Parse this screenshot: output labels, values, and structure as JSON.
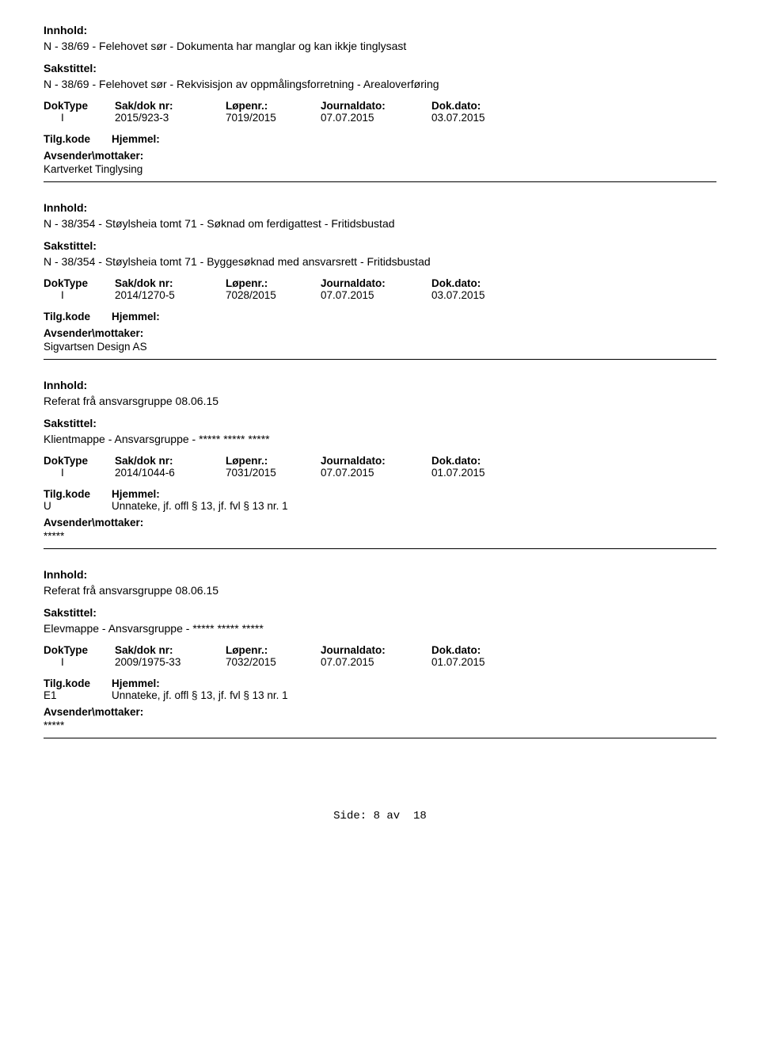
{
  "labels": {
    "innhold": "Innhold:",
    "sakstittel": "Sakstittel:",
    "doktype": "DokType",
    "sakdok": "Sak/dok nr:",
    "lopenr": "Løpenr.:",
    "journaldato": "Journaldato:",
    "dokdato": "Dok.dato:",
    "tilgkode": "Tilg.kode",
    "hjemmel": "Hjemmel:",
    "avsender": "Avsender\\mottaker:"
  },
  "records": [
    {
      "innhold": "N - 38/69 - Felehovet sør - Dokumenta har manglar og kan ikkje tinglysast",
      "sakstittel": "N - 38/69 - Felehovet sør - Rekvisisjon av oppmålingsforretning - Arealoverføring",
      "doktype": "I",
      "sakdok": "2015/923-3",
      "lopenr": "7019/2015",
      "journaldato": "07.07.2015",
      "dokdato": "03.07.2015",
      "tilgcode": "",
      "hjemmel": "",
      "avsender": "Kartverket Tinglysing"
    },
    {
      "innhold": "N - 38/354 - Støylsheia tomt 71 - Søknad om ferdigattest - Fritidsbustad",
      "sakstittel": "N - 38/354 - Støylsheia tomt 71 - Byggesøknad med ansvarsrett - Fritidsbustad",
      "doktype": "I",
      "sakdok": "2014/1270-5",
      "lopenr": "7028/2015",
      "journaldato": "07.07.2015",
      "dokdato": "03.07.2015",
      "tilgcode": "",
      "hjemmel": "",
      "avsender": "Sigvartsen Design AS"
    },
    {
      "innhold": "Referat frå ansvarsgruppe 08.06.15",
      "sakstittel": "Klientmappe - Ansvarsgruppe - ***** ***** *****",
      "doktype": "I",
      "sakdok": "2014/1044-6",
      "lopenr": "7031/2015",
      "journaldato": "07.07.2015",
      "dokdato": "01.07.2015",
      "tilgcode": "U",
      "hjemmel": "Unnateke, jf. offl § 13, jf. fvl § 13 nr. 1",
      "avsender": "*****"
    },
    {
      "innhold": "Referat frå ansvarsgruppe 08.06.15",
      "sakstittel": "Elevmappe - Ansvarsgruppe - ***** ***** *****",
      "doktype": "I",
      "sakdok": "2009/1975-33",
      "lopenr": "7032/2015",
      "journaldato": "07.07.2015",
      "dokdato": "01.07.2015",
      "tilgcode": "E1",
      "hjemmel": "Unnateke, jf. offl § 13, jf. fvl § 13 nr. 1",
      "avsender": "*****"
    }
  ],
  "footer": {
    "side": "Side:",
    "page": "8",
    "av": "av",
    "total": "18"
  }
}
